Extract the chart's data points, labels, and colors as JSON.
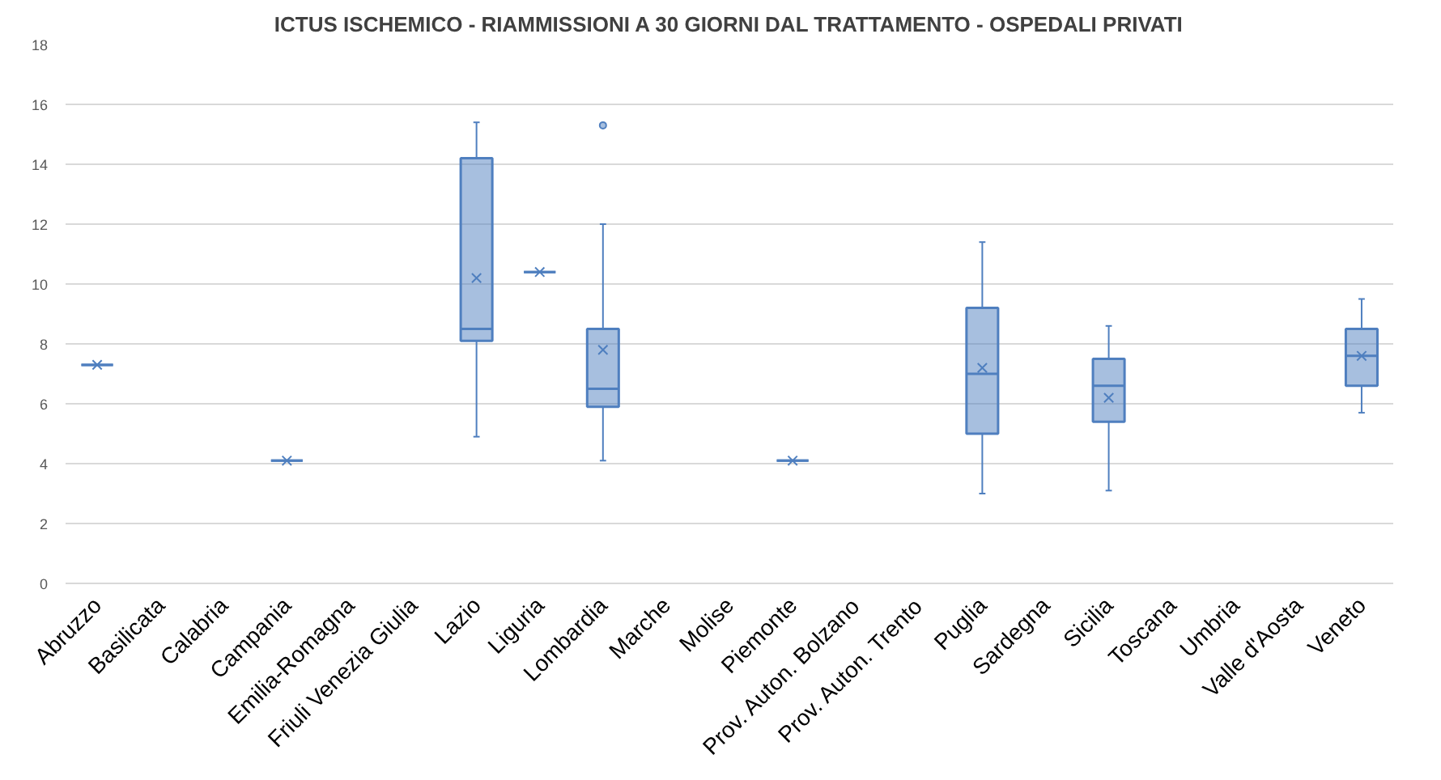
{
  "chart_data": {
    "type": "box",
    "title": "ICTUS ISCHEMICO - RIAMMISSIONI A 30 GIORNI DAL TRATTAMENTO - OSPEDALI PRIVATI",
    "categories": [
      "Abruzzo",
      "Basilicata",
      "Calabria",
      "Campania",
      "Emilia-Romagna",
      "Friuli Venezia Giulia",
      "Lazio",
      "Liguria",
      "Lombardia",
      "Marche",
      "Molise",
      "Piemonte",
      "Prov. Auton. Bolzano",
      "Prov. Auton. Trento",
      "Puglia",
      "Sardegna",
      "Sicilia",
      "Toscana",
      "Umbria",
      "Valle d'Aosta",
      "Veneto"
    ],
    "color": "#4f7fbf",
    "boxes": [
      {
        "low": 7.3,
        "q1": 7.3,
        "median": 7.3,
        "q3": 7.3,
        "high": 7.3,
        "mean": 7.3
      },
      null,
      null,
      {
        "low": 4.1,
        "q1": 4.1,
        "median": 4.1,
        "q3": 4.1,
        "high": 4.1,
        "mean": 4.1
      },
      null,
      null,
      {
        "low": 4.9,
        "q1": 8.1,
        "median": 8.5,
        "q3": 14.2,
        "high": 15.4,
        "mean": 10.2
      },
      {
        "low": 10.4,
        "q1": 10.4,
        "median": 10.4,
        "q3": 10.4,
        "high": 10.4,
        "mean": 10.4
      },
      {
        "low": 4.1,
        "q1": 5.9,
        "median": 6.5,
        "q3": 8.5,
        "high": 12.0,
        "mean": 7.8,
        "outliers": [
          15.3
        ]
      },
      null,
      null,
      {
        "low": 4.1,
        "q1": 4.1,
        "median": 4.1,
        "q3": 4.1,
        "high": 4.1,
        "mean": 4.1
      },
      null,
      null,
      {
        "low": 3.0,
        "q1": 5.0,
        "median": 7.0,
        "q3": 9.2,
        "high": 11.4,
        "mean": 7.2
      },
      null,
      {
        "low": 3.1,
        "q1": 5.4,
        "median": 6.6,
        "q3": 7.5,
        "high": 8.6,
        "mean": 6.2
      },
      null,
      null,
      null,
      {
        "low": 5.7,
        "q1": 6.6,
        "median": 7.6,
        "q3": 8.5,
        "high": 9.5,
        "mean": 7.6
      }
    ],
    "ylim": [
      0,
      18
    ],
    "yticks": [
      0,
      2,
      4,
      6,
      8,
      10,
      12,
      14,
      16,
      18
    ],
    "grid": "y"
  }
}
